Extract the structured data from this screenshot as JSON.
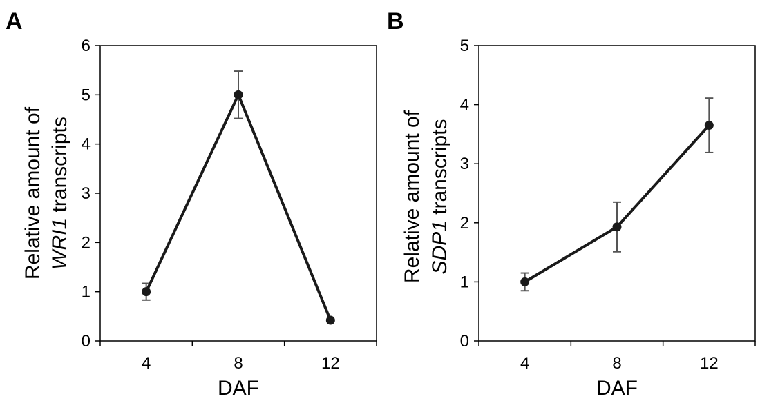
{
  "chart_data": [
    {
      "panel": "A",
      "type": "line",
      "title": "",
      "xlabel": "DAF",
      "ylabel_line1": "Relative amount of",
      "ylabel_gene": "WRI1",
      "ylabel_suffix": " transcripts",
      "categories": [
        "4",
        "8",
        "12"
      ],
      "values": [
        1.0,
        5.0,
        0.42
      ],
      "errors": [
        0.17,
        0.48,
        0.0
      ],
      "ylim": [
        0,
        6
      ],
      "yticks": [
        0,
        1,
        2,
        3,
        4,
        5,
        6
      ],
      "grid": false,
      "legend": "none"
    },
    {
      "panel": "B",
      "type": "line",
      "title": "",
      "xlabel": "DAF",
      "ylabel_line1": "Relative amount of",
      "ylabel_gene": "SDP1",
      "ylabel_suffix": " transcripts",
      "categories": [
        "4",
        "8",
        "12"
      ],
      "values": [
        1.0,
        1.93,
        3.65
      ],
      "errors": [
        0.15,
        0.42,
        0.46
      ],
      "ylim": [
        0,
        5
      ],
      "yticks": [
        0,
        1,
        2,
        3,
        4,
        5
      ],
      "grid": false,
      "legend": "none"
    }
  ],
  "colors": {
    "series": "#1a1a1a",
    "error_bar": "#555555",
    "axis": "#000000"
  }
}
